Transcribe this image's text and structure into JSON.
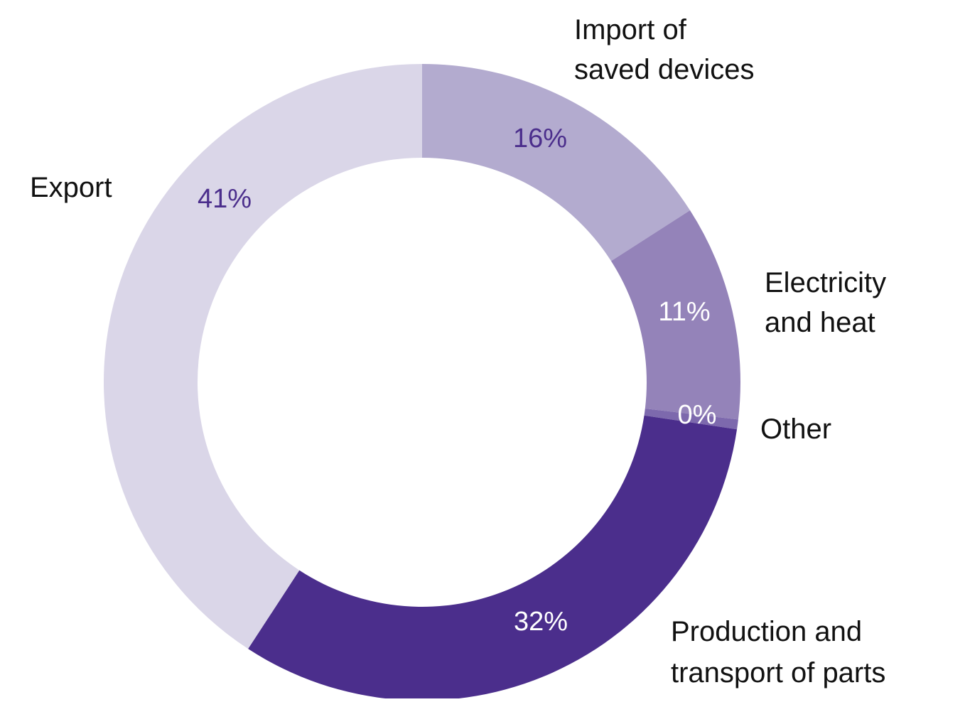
{
  "chart_data": {
    "type": "pie",
    "variant": "donut",
    "title": "",
    "unit": "%",
    "slices": [
      {
        "name": "Import of saved devices",
        "label_lines": [
          "Import of",
          "saved devices"
        ],
        "value": 16,
        "value_label": "16%",
        "color": "#b3abcf",
        "label_color": "#4b2e8c"
      },
      {
        "name": "Electricity and heat",
        "label_lines": [
          "Electricity",
          "and heat"
        ],
        "value": 11,
        "value_label": "11%",
        "color": "#9483b9",
        "label_color": "#ffffff"
      },
      {
        "name": "Other",
        "label_lines": [
          "Other"
        ],
        "value": 0.5,
        "value_label": "0%",
        "color": "#7d69ad",
        "label_color": "#ffffff"
      },
      {
        "name": "Production and transport of parts",
        "label_lines": [
          "Production and",
          "transport of parts"
        ],
        "value": 32,
        "value_label": "32%",
        "color": "#4b2e8c",
        "label_color": "#ffffff"
      },
      {
        "name": "Export",
        "label_lines": [
          "Export"
        ],
        "value": 41,
        "value_label": "41%",
        "color": "#dad6e8",
        "label_color": "#4b2e8c"
      }
    ],
    "start": "top",
    "direction": "clockwise",
    "legend": "none"
  }
}
